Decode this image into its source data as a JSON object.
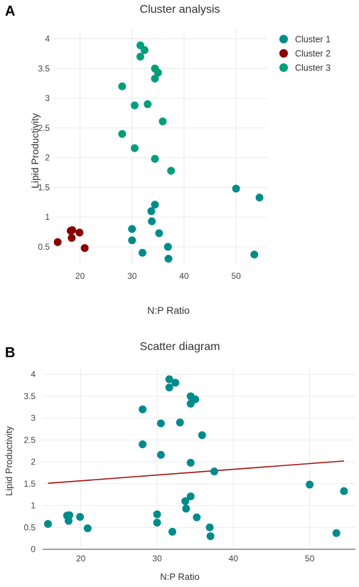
{
  "chart_data": [
    {
      "panel": "A",
      "type": "scatter",
      "title": "Cluster analysis",
      "xlabel": "N:P Ratio",
      "ylabel": "Lipid Productivity",
      "xlim": [
        15,
        56
      ],
      "ylim": [
        0.2,
        4.15
      ],
      "xticks": [
        20,
        30,
        40,
        50
      ],
      "yticks": [
        0.5,
        1,
        1.5,
        2,
        2.5,
        3,
        3.5,
        4
      ],
      "grid": true,
      "legend": "top-right",
      "series": [
        {
          "name": "Cluster 1",
          "color": "#008B8B",
          "points": [
            {
              "x": 30.0,
              "y": 0.8
            },
            {
              "x": 30.0,
              "y": 0.61
            },
            {
              "x": 32.0,
              "y": 0.4
            },
            {
              "x": 33.7,
              "y": 1.1
            },
            {
              "x": 34.4,
              "y": 1.21
            },
            {
              "x": 33.8,
              "y": 0.93
            },
            {
              "x": 35.2,
              "y": 0.73
            },
            {
              "x": 36.9,
              "y": 0.5
            },
            {
              "x": 37.0,
              "y": 0.3
            },
            {
              "x": 50.0,
              "y": 1.48
            },
            {
              "x": 54.5,
              "y": 1.33
            },
            {
              "x": 53.5,
              "y": 0.37
            }
          ]
        },
        {
          "name": "Cluster 2",
          "color": "#8B0000",
          "points": [
            {
              "x": 18.2,
              "y": 0.77
            },
            {
              "x": 18.5,
              "y": 0.78
            },
            {
              "x": 19.9,
              "y": 0.74
            },
            {
              "x": 18.4,
              "y": 0.65
            },
            {
              "x": 15.7,
              "y": 0.58
            },
            {
              "x": 20.9,
              "y": 0.48
            }
          ]
        },
        {
          "name": "Cluster 3",
          "color": "#009E7A",
          "points": [
            {
              "x": 31.6,
              "y": 3.89
            },
            {
              "x": 32.4,
              "y": 3.81
            },
            {
              "x": 31.6,
              "y": 3.7
            },
            {
              "x": 34.4,
              "y": 3.5
            },
            {
              "x": 35.0,
              "y": 3.43
            },
            {
              "x": 34.4,
              "y": 3.33
            },
            {
              "x": 28.1,
              "y": 3.2
            },
            {
              "x": 30.5,
              "y": 2.88
            },
            {
              "x": 33.0,
              "y": 2.9
            },
            {
              "x": 35.9,
              "y": 2.61
            },
            {
              "x": 28.1,
              "y": 2.4
            },
            {
              "x": 30.5,
              "y": 2.16
            },
            {
              "x": 34.4,
              "y": 1.98
            },
            {
              "x": 37.5,
              "y": 1.78
            }
          ]
        }
      ]
    },
    {
      "panel": "B",
      "type": "scatter",
      "title": "Scatter diagram",
      "xlabel": "N:P Ratio",
      "ylabel": "Lipid Productivity",
      "xlim": [
        15,
        56
      ],
      "ylim": [
        0,
        4.15
      ],
      "xticks": [
        20,
        30,
        40,
        50
      ],
      "yticks": [
        0,
        0.5,
        1,
        1.5,
        2,
        2.5,
        3,
        3.5,
        4
      ],
      "grid": true,
      "legend": "none",
      "series": [
        {
          "color": "#008B8B",
          "points": [
            {
              "x": 31.6,
              "y": 3.89
            },
            {
              "x": 32.4,
              "y": 3.81
            },
            {
              "x": 31.6,
              "y": 3.7
            },
            {
              "x": 34.4,
              "y": 3.5
            },
            {
              "x": 35.0,
              "y": 3.43
            },
            {
              "x": 34.4,
              "y": 3.33
            },
            {
              "x": 28.1,
              "y": 3.2
            },
            {
              "x": 30.5,
              "y": 2.88
            },
            {
              "x": 33.0,
              "y": 2.9
            },
            {
              "x": 35.9,
              "y": 2.61
            },
            {
              "x": 28.1,
              "y": 2.4
            },
            {
              "x": 30.5,
              "y": 2.16
            },
            {
              "x": 34.4,
              "y": 1.98
            },
            {
              "x": 37.5,
              "y": 1.78
            },
            {
              "x": 30.0,
              "y": 0.8
            },
            {
              "x": 30.0,
              "y": 0.61
            },
            {
              "x": 32.0,
              "y": 0.4
            },
            {
              "x": 33.7,
              "y": 1.1
            },
            {
              "x": 34.4,
              "y": 1.21
            },
            {
              "x": 33.8,
              "y": 0.93
            },
            {
              "x": 35.2,
              "y": 0.73
            },
            {
              "x": 36.9,
              "y": 0.5
            },
            {
              "x": 37.0,
              "y": 0.3
            },
            {
              "x": 50.0,
              "y": 1.48
            },
            {
              "x": 54.5,
              "y": 1.33
            },
            {
              "x": 53.5,
              "y": 0.37
            },
            {
              "x": 18.2,
              "y": 0.77
            },
            {
              "x": 18.5,
              "y": 0.78
            },
            {
              "x": 19.9,
              "y": 0.74
            },
            {
              "x": 18.4,
              "y": 0.65
            },
            {
              "x": 15.7,
              "y": 0.58
            },
            {
              "x": 20.9,
              "y": 0.48
            }
          ]
        }
      ],
      "trendline": {
        "color": "#A01010",
        "x": [
          15.7,
          54.5
        ],
        "y": [
          1.51,
          2.02
        ]
      }
    }
  ]
}
